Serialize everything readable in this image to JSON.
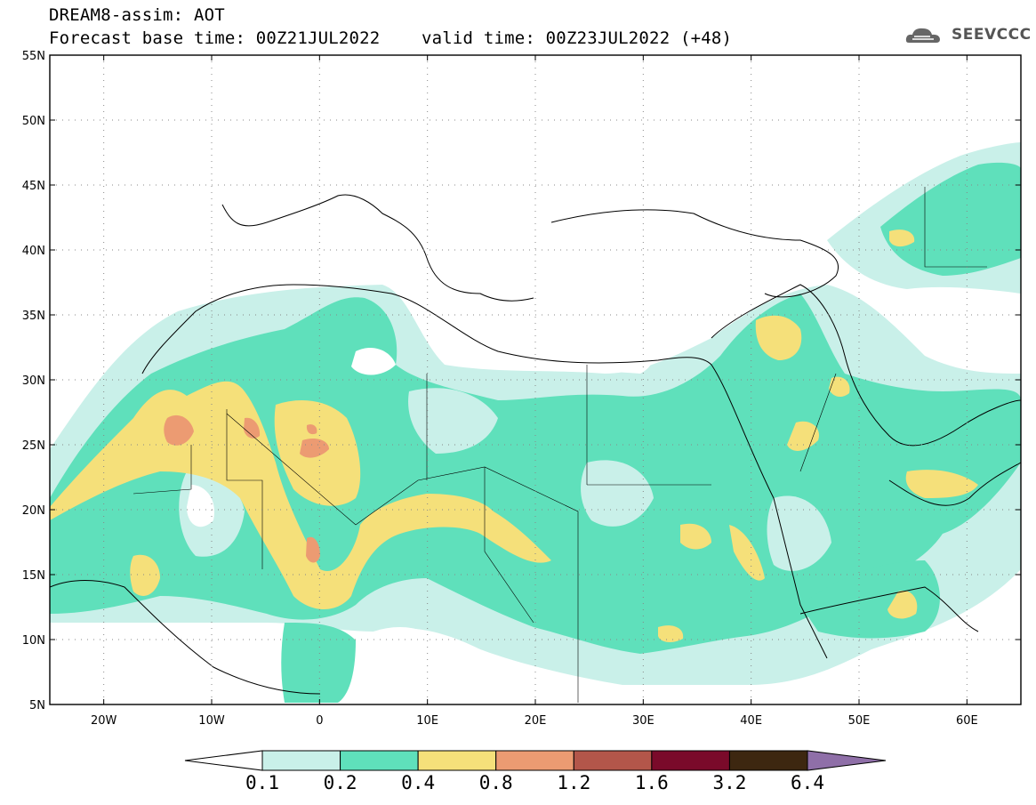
{
  "title": {
    "line1": "DREAM8-assim: AOT",
    "line2": "Forecast base time: 00Z21JUL2022    valid time: 00Z23JUL2022 (+48)"
  },
  "logo": {
    "text": "SEEVCCC",
    "icon": "cloud-icon"
  },
  "map": {
    "lon_range": [
      -25,
      65
    ],
    "lat_range": [
      5,
      55
    ],
    "lat_ticks": [
      "5N",
      "10N",
      "15N",
      "20N",
      "25N",
      "30N",
      "35N",
      "40N",
      "45N",
      "50N",
      "55N"
    ],
    "lon_ticks": [
      "20W",
      "10W",
      "0",
      "10E",
      "20E",
      "30E",
      "40E",
      "50E",
      "60E"
    ],
    "grid": "dotted"
  },
  "colorbar": {
    "labels": [
      "0.1",
      "0.2",
      "0.4",
      "0.8",
      "1.2",
      "1.6",
      "3.2",
      "6.4"
    ],
    "colors": [
      "#ffffff",
      "#c9f0e9",
      "#5fe0bb",
      "#f5e07a",
      "#ec9b72",
      "#b3564a",
      "#7a0a2a",
      "#3d2710",
      "#8f6fa8"
    ]
  }
}
